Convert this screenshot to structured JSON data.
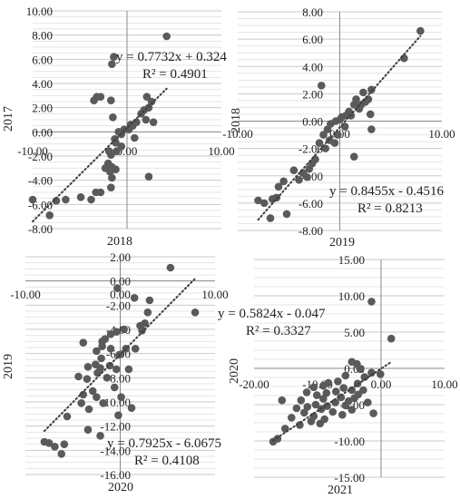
{
  "chart_data": [
    {
      "type": "scatter",
      "xlabel": "2018",
      "ylabel": "2017",
      "xlim": [
        -10,
        10
      ],
      "ylim": [
        -8,
        10
      ],
      "xticks": [
        "-10.00",
        "0.00",
        "10.00"
      ],
      "yticks": [
        "10.00",
        "8.00",
        "6.00",
        "4.00",
        "2.00",
        "0.00",
        "-2.00",
        "-4.00",
        "-6.00",
        "-8.00"
      ],
      "grid": true,
      "trendline": {
        "slope": 0.7732,
        "intercept": 0.324,
        "equation": "y = 0.7732x + 0.324",
        "r2": "R² = 0.4901"
      },
      "points": [
        [
          4.2,
          7.9
        ],
        [
          -1.6,
          5.6
        ],
        [
          -1.4,
          6.2
        ],
        [
          -3.5,
          2.6
        ],
        [
          -3.2,
          2.9
        ],
        [
          -1.7,
          2.6
        ],
        [
          -1.5,
          1.2
        ],
        [
          -2.8,
          2.9
        ],
        [
          0.4,
          0.6
        ],
        [
          1.0,
          0.8
        ],
        [
          1.8,
          1.8
        ],
        [
          2.1,
          2.9
        ],
        [
          2.3,
          2.0
        ],
        [
          2.6,
          2.5
        ],
        [
          1.5,
          1.5
        ],
        [
          2.0,
          1.0
        ],
        [
          2.8,
          0.8
        ],
        [
          0.2,
          0.2
        ],
        [
          0.6,
          0.5
        ],
        [
          -0.3,
          0.2
        ],
        [
          -0.6,
          -0.2
        ],
        [
          -0.9,
          0.0
        ],
        [
          -1.3,
          -0.6
        ],
        [
          -0.6,
          -1.2
        ],
        [
          -1.1,
          -1.6
        ],
        [
          -1.7,
          -1.9
        ],
        [
          -1.9,
          -1.6
        ],
        [
          -2.0,
          -2.6
        ],
        [
          -1.6,
          -2.9
        ],
        [
          -2.3,
          -3.0
        ],
        [
          -1.6,
          -3.8
        ],
        [
          -1.2,
          -3.1
        ],
        [
          -1.8,
          -3.3
        ],
        [
          -1.7,
          -4.6
        ],
        [
          -3.3,
          -5.0
        ],
        [
          -2.8,
          -5.0
        ],
        [
          -3.8,
          -5.6
        ],
        [
          -4.9,
          -5.4
        ],
        [
          -6.5,
          -5.6
        ],
        [
          -7.5,
          -5.7
        ],
        [
          -8.2,
          -6.9
        ],
        [
          -10.0,
          -5.6
        ],
        [
          2.3,
          -3.7
        ],
        [
          -1.2,
          -0.9
        ],
        [
          0.8,
          -0.5
        ]
      ]
    },
    {
      "type": "scatter",
      "xlabel": "2019",
      "ylabel": "2018",
      "xlim": [
        -10,
        10
      ],
      "ylim": [
        -8,
        8
      ],
      "xticks": [
        "-10.00",
        "0.00",
        "10.00"
      ],
      "yticks": [
        "8.00",
        "6.00",
        "4.00",
        "2.00",
        "0.00",
        "-2.00",
        "-4.00",
        "-6.00",
        "-8.00"
      ],
      "grid": true,
      "trendline": {
        "slope": 0.8455,
        "intercept": -0.4516,
        "equation": "y = 0.8455x - 0.4516",
        "r2": "R² = 0.8213"
      },
      "points": [
        [
          7.9,
          6.6
        ],
        [
          6.3,
          4.6
        ],
        [
          -1.8,
          2.6
        ],
        [
          2.3,
          2.1
        ],
        [
          3.1,
          2.3
        ],
        [
          1.6,
          1.6
        ],
        [
          2.8,
          1.6
        ],
        [
          1.4,
          1.2
        ],
        [
          2.1,
          1.2
        ],
        [
          1.9,
          0.9
        ],
        [
          0.9,
          0.7
        ],
        [
          1.1,
          0.4
        ],
        [
          0.6,
          0.4
        ],
        [
          0.2,
          0.3
        ],
        [
          0.0,
          0.1
        ],
        [
          -0.4,
          0.0
        ],
        [
          -0.9,
          -0.2
        ],
        [
          -1.2,
          -0.6
        ],
        [
          -1.6,
          -1.0
        ],
        [
          -0.5,
          -1.6
        ],
        [
          -2.0,
          -1.6
        ],
        [
          -1.4,
          -2.0
        ],
        [
          -2.4,
          -2.8
        ],
        [
          -2.7,
          -3.1
        ],
        [
          -3.0,
          -3.5
        ],
        [
          -3.6,
          -3.8
        ],
        [
          -3.2,
          -4.1
        ],
        [
          -4.0,
          -4.3
        ],
        [
          -5.5,
          -4.4
        ],
        [
          -6.0,
          -4.8
        ],
        [
          -6.2,
          -5.6
        ],
        [
          -6.6,
          -5.7
        ],
        [
          -7.4,
          -6.0
        ],
        [
          -6.8,
          -7.1
        ],
        [
          -5.2,
          -6.8
        ],
        [
          -8.0,
          -5.8
        ],
        [
          -4.5,
          -3.6
        ],
        [
          3.0,
          0.5
        ],
        [
          3.1,
          -0.6
        ],
        [
          1.4,
          -2.6
        ],
        [
          -0.2,
          -1.0
        ],
        [
          0.5,
          -0.4
        ],
        [
          -1.0,
          -1.4
        ],
        [
          2.5,
          1.4
        ]
      ]
    },
    {
      "type": "scatter",
      "xlabel": "2020",
      "ylabel": "2019",
      "xlim": [
        -10,
        10
      ],
      "ylim": [
        -16,
        2
      ],
      "xticks": [
        "-10.00",
        "0.00",
        "10.00"
      ],
      "yticks": [
        "2.00",
        "0.00",
        "-2.00",
        "-4.00",
        "-6.00",
        "-8.00",
        "-10.00",
        "-12.00",
        "-14.00",
        "-16.00"
      ],
      "grid": true,
      "trendline": {
        "slope": 0.7925,
        "intercept": -6.0675,
        "equation": "y = 0.7925x - 6.0675",
        "r2": "R² = 0.4108"
      },
      "points": [
        [
          5.3,
          1.1
        ],
        [
          -0.3,
          -0.6
        ],
        [
          7.9,
          -2.6
        ],
        [
          1.5,
          -1.4
        ],
        [
          3.1,
          -1.6
        ],
        [
          2.9,
          -2.6
        ],
        [
          2.6,
          -3.5
        ],
        [
          2.1,
          -3.7
        ],
        [
          2.3,
          -4.1
        ],
        [
          0.4,
          -4.0
        ],
        [
          -1.0,
          -4.4
        ],
        [
          -0.4,
          -4.2
        ],
        [
          -1.6,
          -4.8
        ],
        [
          -1.9,
          -5.0
        ],
        [
          -3.9,
          -5.1
        ],
        [
          -1.9,
          -5.4
        ],
        [
          -1.0,
          -5.6
        ],
        [
          -2.5,
          -5.8
        ],
        [
          1.6,
          -5.6
        ],
        [
          0.6,
          -5.6
        ],
        [
          -0.1,
          -6.1
        ],
        [
          -2.0,
          -6.4
        ],
        [
          -2.6,
          -6.9
        ],
        [
          -3.4,
          -7.1
        ],
        [
          -2.1,
          -7.2
        ],
        [
          -1.1,
          -7.0
        ],
        [
          -0.4,
          -7.3
        ],
        [
          0.9,
          -7.3
        ],
        [
          -2.4,
          -7.6
        ],
        [
          -4.4,
          -7.9
        ],
        [
          -3.5,
          -8.1
        ],
        [
          -1.4,
          -8.0
        ],
        [
          -0.6,
          -8.8
        ],
        [
          -2.9,
          -9.1
        ],
        [
          -3.9,
          -9.4
        ],
        [
          -2.5,
          -9.6
        ],
        [
          0.1,
          -9.6
        ],
        [
          -4.1,
          -10.1
        ],
        [
          -1.8,
          -10.1
        ],
        [
          -3.3,
          -10.6
        ],
        [
          1.2,
          -10.5
        ],
        [
          -0.2,
          -11.1
        ],
        [
          -5.6,
          -11.2
        ],
        [
          -3.4,
          -12.3
        ],
        [
          -2.1,
          -12.8
        ],
        [
          -7.5,
          -13.4
        ],
        [
          -6.9,
          -13.7
        ],
        [
          -5.9,
          -13.5
        ],
        [
          -6.2,
          -14.3
        ],
        [
          -8.0,
          -13.3
        ]
      ]
    },
    {
      "type": "scatter",
      "xlabel": "2021",
      "ylabel": "2020",
      "xlim": [
        -20,
        10
      ],
      "ylim": [
        -15,
        15
      ],
      "xticks": [
        "-20.00",
        "-10.00",
        "0.00",
        "10.00"
      ],
      "yticks": [
        "15.00",
        "10.00",
        "5.00",
        "0.00",
        "-5.00",
        "-10.00",
        "-15.00"
      ],
      "grid": true,
      "trendline": {
        "slope": 0.5824,
        "intercept": -0.047,
        "equation": "y = 0.5824x - 0.047",
        "r2": "R² = 0.3327"
      },
      "points": [
        [
          -1.5,
          9.2
        ],
        [
          1.6,
          4.1
        ],
        [
          -4.6,
          0.9
        ],
        [
          -3.8,
          0.6
        ],
        [
          -3.3,
          -0.1
        ],
        [
          -1.5,
          -0.6
        ],
        [
          -0.1,
          -0.8
        ],
        [
          -2.6,
          -1.2
        ],
        [
          -5.6,
          -1.0
        ],
        [
          -6.8,
          -1.8
        ],
        [
          -8.3,
          -2.0
        ],
        [
          -3.7,
          -2.1
        ],
        [
          -9.1,
          -2.4
        ],
        [
          -10.6,
          -2.6
        ],
        [
          -5.9,
          -2.7
        ],
        [
          -4.6,
          -3.0
        ],
        [
          -2.8,
          -3.0
        ],
        [
          -7.1,
          -3.2
        ],
        [
          -11.7,
          -3.3
        ],
        [
          -8.6,
          -3.4
        ],
        [
          -10.1,
          -3.7
        ],
        [
          -3.6,
          -3.6
        ],
        [
          -4.2,
          -4.1
        ],
        [
          -6.3,
          -4.0
        ],
        [
          -9.1,
          -4.2
        ],
        [
          -12.6,
          -4.4
        ],
        [
          -15.6,
          -4.4
        ],
        [
          -5.1,
          -4.5
        ],
        [
          -7.2,
          -4.7
        ],
        [
          -2.1,
          -4.7
        ],
        [
          -10.3,
          -5.0
        ],
        [
          -8.5,
          -5.2
        ],
        [
          -5.6,
          -5.1
        ],
        [
          -11.6,
          -5.3
        ],
        [
          -13.3,
          -5.5
        ],
        [
          -9.4,
          -5.6
        ],
        [
          -4.6,
          -5.7
        ],
        [
          -7.6,
          -6.0
        ],
        [
          -12.1,
          -6.1
        ],
        [
          -6.1,
          -6.4
        ],
        [
          -10.6,
          -6.6
        ],
        [
          -8.9,
          -7.0
        ],
        [
          -14.1,
          -6.8
        ],
        [
          -11.0,
          -7.3
        ],
        [
          -9.6,
          -7.6
        ],
        [
          -12.8,
          -7.8
        ],
        [
          -15.1,
          -8.3
        ],
        [
          -16.3,
          -9.7
        ],
        [
          -17.0,
          -10.1
        ],
        [
          -1.2,
          -6.2
        ]
      ]
    }
  ]
}
